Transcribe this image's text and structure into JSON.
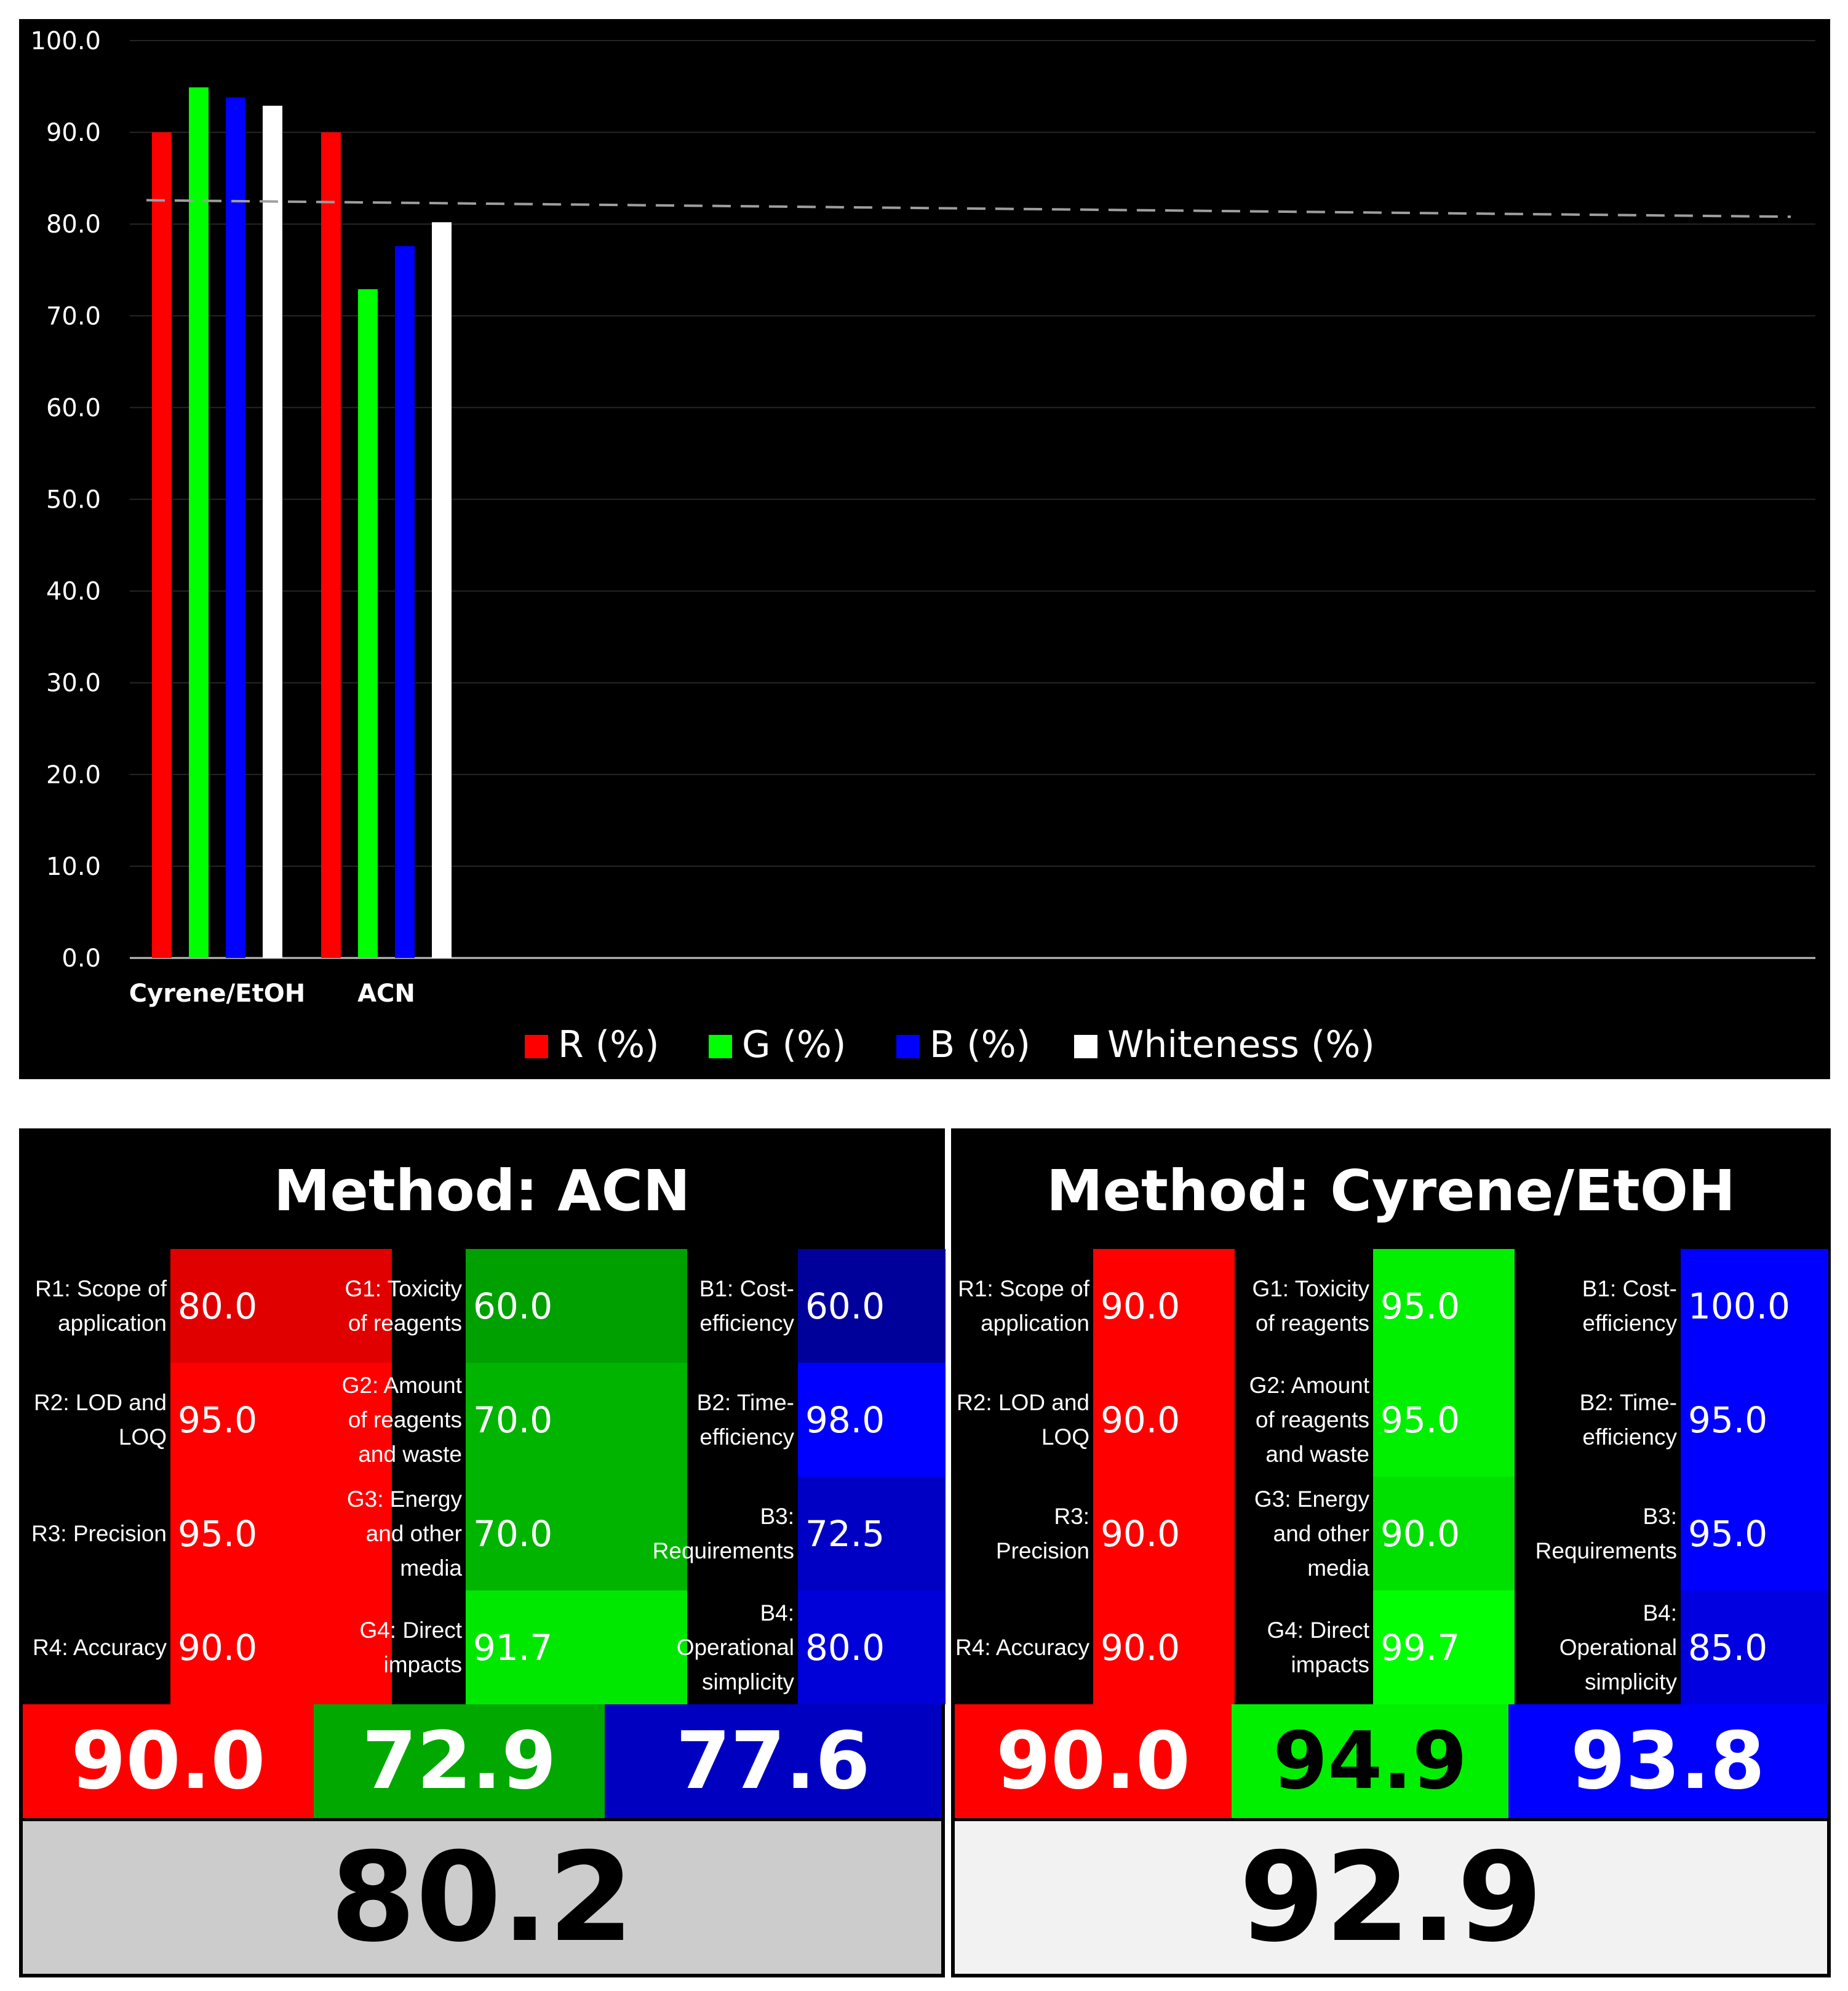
{
  "chart_data": {
    "type": "bar",
    "categories": [
      "Cyrene/EtOH",
      "ACN"
    ],
    "series": [
      {
        "name": "R (%)",
        "values": [
          90.0,
          90.0
        ],
        "color": "#ff0000"
      },
      {
        "name": "G (%)",
        "values": [
          94.9,
          72.9
        ],
        "color": "#00ff00"
      },
      {
        "name": "B (%)",
        "values": [
          93.8,
          77.6
        ],
        "color": "#0000ff"
      },
      {
        "name": "Whiteness (%)",
        "values": [
          92.9,
          80.2
        ],
        "color": "#ffffff"
      }
    ],
    "ylim": [
      0,
      100
    ],
    "yticks": [
      "100.0",
      "90.0",
      "80.0",
      "70.0",
      "60.0",
      "50.0",
      "40.0",
      "30.0",
      "20.0",
      "10.0",
      "0.0"
    ],
    "trendline": {
      "style": "dashed",
      "color": "#9e9e9e",
      "from": 82.6,
      "to": 80.8
    },
    "grid": true,
    "legend": "bottom",
    "background": "#000000"
  },
  "cards": [
    {
      "title": "Method: ACN",
      "rows": [
        {
          "r_label": "R1: Scope of\napplication",
          "r_val": "80.0",
          "g_label": "G1: Toxicity\nof reagents",
          "g_val": "60.0",
          "b_label": "B1: Cost-\nefficiency",
          "b_val": "60.0"
        },
        {
          "r_label": "R2: LOD and\nLOQ",
          "r_val": "95.0",
          "g_label": "G2: Amount\nof reagents\nand waste",
          "g_val": "70.0",
          "b_label": "B2: Time-\nefficiency",
          "b_val": "98.0"
        },
        {
          "r_label": "R3: Precision",
          "r_val": "95.0",
          "g_label": "G3: Energy\nand other\nmedia",
          "g_val": "70.0",
          "b_label": "B3:\nRequirements",
          "b_val": "72.5"
        },
        {
          "r_label": "R4: Accuracy",
          "r_val": "90.0",
          "g_label": "G4: Direct\nimpacts",
          "g_val": "91.7",
          "b_label": "B4:\nOperational\nsimplicity",
          "b_val": "80.0"
        }
      ],
      "scores": {
        "r": "90.0",
        "g": "72.9",
        "b": "77.6"
      },
      "whiteness": "80.2",
      "colors": {
        "r": [
          "#e00000",
          "#ff0000",
          "#ff0000",
          "#ff0000"
        ],
        "g": [
          "#00a000",
          "#00b400",
          "#00b400",
          "#00e800"
        ],
        "b": [
          "#00009a",
          "#0000ff",
          "#0000c4",
          "#0000d8"
        ],
        "score_r": "#ff0000",
        "score_g": "#00a800",
        "score_b": "#0000c0",
        "score_g_text": "#ffffff",
        "whiteness_bg": "#cccccc"
      }
    },
    {
      "title": "Method: Cyrene/EtOH",
      "rows": [
        {
          "r_label": "R1: Scope of\napplication",
          "r_val": "90.0",
          "g_label": "G1: Toxicity\nof reagents",
          "g_val": "95.0",
          "b_label": "B1: Cost-\nefficiency",
          "b_val": "100.0"
        },
        {
          "r_label": "R2: LOD and\nLOQ",
          "r_val": "90.0",
          "g_label": "G2: Amount\nof reagents\nand waste",
          "g_val": "95.0",
          "b_label": "B2: Time-\nefficiency",
          "b_val": "95.0"
        },
        {
          "r_label": "R3: Precision",
          "r_val": "90.0",
          "g_label": "G3: Energy\nand other\nmedia",
          "g_val": "90.0",
          "b_label": "B3:\nRequirements",
          "b_val": "95.0"
        },
        {
          "r_label": "R4: Accuracy",
          "r_val": "90.0",
          "g_label": "G4: Direct\nimpacts",
          "g_val": "99.7",
          "b_label": "B4:\nOperational\nsimplicity",
          "b_val": "85.0"
        }
      ],
      "scores": {
        "r": "90.0",
        "g": "94.9",
        "b": "93.8"
      },
      "whiteness": "92.9",
      "colors": {
        "r": [
          "#ff0000",
          "#ff0000",
          "#ff0000",
          "#ff0000"
        ],
        "g": [
          "#00f000",
          "#00f000",
          "#00e000",
          "#00ff00"
        ],
        "b": [
          "#0000ff",
          "#0000ff",
          "#0000ff",
          "#0000e0"
        ],
        "score_r": "#ff0000",
        "score_g": "#00f000",
        "score_b": "#0000ff",
        "score_g_text": "#000000",
        "whiteness_bg": "#f2f2f2"
      }
    }
  ]
}
